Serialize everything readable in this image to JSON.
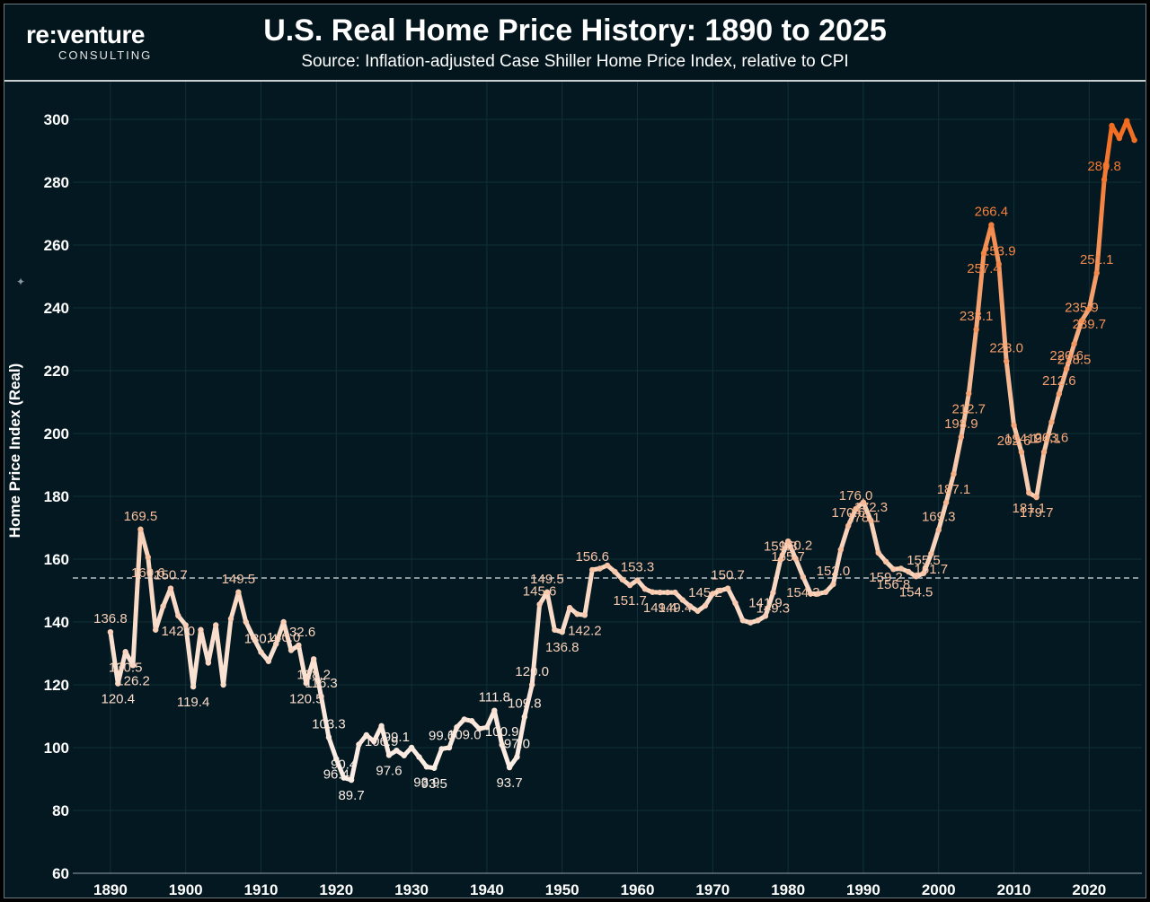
{
  "header": {
    "logo_main": "re:venture",
    "logo_sub": "CONSULTING",
    "title": "U.S. Real Home Price History: 1890 to 2025",
    "subtitle": "Source: Inflation-adjusted Case Shiller Home Price Index, relative to CPI"
  },
  "colors": {
    "background": "#031820",
    "line_start": "#fcefe8",
    "line_end": "#f26b1d",
    "average_line": "#b8c0c4"
  },
  "chart_data": {
    "type": "line",
    "title": "U.S. Real Home Price History: 1890 to 2025",
    "subtitle": "Source: Inflation-adjusted Case Shiller Home Price Index, relative to CPI",
    "xlabel": "",
    "ylabel": "Home Price Index (Real)",
    "xlim": [
      1885,
      2027
    ],
    "ylim": [
      60,
      312
    ],
    "x_ticks": [
      1890,
      1900,
      1910,
      1920,
      1930,
      1940,
      1950,
      1960,
      1970,
      1980,
      1990,
      2000,
      2010,
      2020
    ],
    "y_ticks": [
      60,
      80,
      100,
      120,
      140,
      160,
      180,
      200,
      220,
      240,
      260,
      280,
      300
    ],
    "grid": true,
    "reference_line": {
      "y": 154,
      "style": "dashed"
    },
    "series": [
      {
        "points": [
          [
            1890,
            136.8
          ],
          [
            1891,
            120.4
          ],
          [
            1892,
            130.5
          ],
          [
            1893,
            126.2
          ],
          [
            1894,
            169.5
          ],
          [
            1895,
            160.6
          ],
          [
            1896,
            137.5
          ],
          [
            1897,
            145
          ],
          [
            1898,
            150.7
          ],
          [
            1899,
            142.0
          ],
          [
            1900,
            139
          ],
          [
            1901,
            119.4
          ],
          [
            1902,
            137.5
          ],
          [
            1903,
            127
          ],
          [
            1904,
            139
          ],
          [
            1905,
            120
          ],
          [
            1906,
            141
          ],
          [
            1907,
            149.5
          ],
          [
            1908,
            140
          ],
          [
            1909,
            135
          ],
          [
            1910,
            130.4
          ],
          [
            1911,
            127.5
          ],
          [
            1912,
            133
          ],
          [
            1913,
            140.0
          ],
          [
            1914,
            131
          ],
          [
            1915,
            132.6
          ],
          [
            1916,
            120.5
          ],
          [
            1917,
            128.2
          ],
          [
            1918,
            116.3
          ],
          [
            1919,
            103.3
          ],
          [
            1920,
            96.4
          ],
          [
            1921,
            90.4
          ],
          [
            1922,
            89.7
          ],
          [
            1923,
            101
          ],
          [
            1924,
            104
          ],
          [
            1925,
            102
          ],
          [
            1926,
            106.9
          ],
          [
            1927,
            97.6
          ],
          [
            1928,
            99.1
          ],
          [
            1929,
            97.5
          ],
          [
            1930,
            100
          ],
          [
            1931,
            97
          ],
          [
            1932,
            93.9
          ],
          [
            1933,
            93.5
          ],
          [
            1934,
            99.6
          ],
          [
            1935,
            100
          ],
          [
            1936,
            106.5
          ],
          [
            1937,
            109.0
          ],
          [
            1938,
            108.5
          ],
          [
            1939,
            106
          ],
          [
            1940,
            106.5
          ],
          [
            1941,
            111.8
          ],
          [
            1942,
            100.9
          ],
          [
            1943,
            93.7
          ],
          [
            1944,
            97.0
          ],
          [
            1945,
            109.8
          ],
          [
            1946,
            120.0
          ],
          [
            1947,
            145.6
          ],
          [
            1948,
            149.5
          ],
          [
            1949,
            137.5
          ],
          [
            1950,
            136.8
          ],
          [
            1951,
            144.5
          ],
          [
            1952,
            142.5
          ],
          [
            1953,
            142.2
          ],
          [
            1954,
            156.6
          ],
          [
            1955,
            157
          ],
          [
            1956,
            158
          ],
          [
            1957,
            156
          ],
          [
            1958,
            153.5
          ],
          [
            1959,
            151.7
          ],
          [
            1960,
            153.3
          ],
          [
            1961,
            150.5
          ],
          [
            1962,
            149.5
          ],
          [
            1963,
            149.4
          ],
          [
            1964,
            149.4
          ],
          [
            1965,
            149.4
          ],
          [
            1966,
            147
          ],
          [
            1967,
            145
          ],
          [
            1968,
            143.5
          ],
          [
            1969,
            145.2
          ],
          [
            1970,
            149
          ],
          [
            1971,
            150
          ],
          [
            1972,
            150.7
          ],
          [
            1973,
            146
          ],
          [
            1974,
            140.5
          ],
          [
            1975,
            139.8
          ],
          [
            1976,
            140.5
          ],
          [
            1977,
            141.9
          ],
          [
            1978,
            149.3
          ],
          [
            1979,
            159.8
          ],
          [
            1980,
            165.7
          ],
          [
            1981,
            160.2
          ],
          [
            1982,
            154.3
          ],
          [
            1983,
            149
          ],
          [
            1984,
            149
          ],
          [
            1985,
            149.5
          ],
          [
            1986,
            152.0
          ],
          [
            1987,
            163
          ],
          [
            1988,
            170.6
          ],
          [
            1989,
            176.0
          ],
          [
            1990,
            178.1
          ],
          [
            1991,
            172.3
          ],
          [
            1992,
            162
          ],
          [
            1993,
            159.2
          ],
          [
            1994,
            156.8
          ],
          [
            1995,
            157
          ],
          [
            1996,
            156
          ],
          [
            1997,
            154.5
          ],
          [
            1998,
            155.5
          ],
          [
            1999,
            161.7
          ],
          [
            2000,
            169.3
          ],
          [
            2001,
            178
          ],
          [
            2002,
            187.1
          ],
          [
            2003,
            198.9
          ],
          [
            2004,
            212.7
          ],
          [
            2005,
            233.1
          ],
          [
            2006,
            257.4
          ],
          [
            2007,
            266.4
          ],
          [
            2008,
            253.9
          ],
          [
            2009,
            223.0
          ],
          [
            2010,
            202.6
          ],
          [
            2011,
            194.1
          ],
          [
            2012,
            181.1
          ],
          [
            2013,
            179.7
          ],
          [
            2014,
            194.1
          ],
          [
            2015,
            203.6
          ],
          [
            2016,
            212.6
          ],
          [
            2017,
            220.6
          ],
          [
            2018,
            228.5
          ],
          [
            2019,
            235.9
          ],
          [
            2020,
            239.7
          ],
          [
            2021,
            251.1
          ],
          [
            2022,
            280.8
          ],
          [
            2023,
            298
          ],
          [
            2024,
            294
          ],
          [
            2025,
            299.5
          ],
          [
            2026,
            293.4
          ]
        ]
      }
    ],
    "data_labels": [
      {
        "x": 1890,
        "y": 136.8,
        "text": "136.8"
      },
      {
        "x": 1891,
        "y": 120.4,
        "text": "120.4"
      },
      {
        "x": 1892,
        "y": 130.5,
        "text": "130.5"
      },
      {
        "x": 1893,
        "y": 126.2,
        "text": "126.2"
      },
      {
        "x": 1894,
        "y": 169.5,
        "text": "169.5"
      },
      {
        "x": 1895,
        "y": 160.6,
        "text": "160.6"
      },
      {
        "x": 1898,
        "y": 150.7,
        "text": "150.7"
      },
      {
        "x": 1899,
        "y": 142.0,
        "text": "142.0"
      },
      {
        "x": 1901,
        "y": 119.4,
        "text": "119.4"
      },
      {
        "x": 1907,
        "y": 149.5,
        "text": "149.5"
      },
      {
        "x": 1910,
        "y": 130.4,
        "text": "130.4"
      },
      {
        "x": 1913,
        "y": 140.0,
        "text": "140.0"
      },
      {
        "x": 1915,
        "y": 132.6,
        "text": "132.6"
      },
      {
        "x": 1916,
        "y": 120.5,
        "text": "120.5"
      },
      {
        "x": 1917,
        "y": 128.2,
        "text": "128.2"
      },
      {
        "x": 1918,
        "y": 116.3,
        "text": "116.3"
      },
      {
        "x": 1919,
        "y": 103.3,
        "text": "103.3"
      },
      {
        "x": 1920,
        "y": 96.4,
        "text": "96.4"
      },
      {
        "x": 1921,
        "y": 90.4,
        "text": "90.4"
      },
      {
        "x": 1922,
        "y": 89.7,
        "text": "89.7"
      },
      {
        "x": 1926,
        "y": 106.9,
        "text": "106.9"
      },
      {
        "x": 1927,
        "y": 97.6,
        "text": "97.6"
      },
      {
        "x": 1928,
        "y": 99.1,
        "text": "99.1"
      },
      {
        "x": 1932,
        "y": 93.9,
        "text": "93.9"
      },
      {
        "x": 1933,
        "y": 93.5,
        "text": "93.5"
      },
      {
        "x": 1934,
        "y": 99.6,
        "text": "99.6"
      },
      {
        "x": 1937,
        "y": 109.0,
        "text": "109.0"
      },
      {
        "x": 1941,
        "y": 111.8,
        "text": "111.8"
      },
      {
        "x": 1942,
        "y": 100.9,
        "text": "100.9"
      },
      {
        "x": 1943,
        "y": 93.7,
        "text": "93.7"
      },
      {
        "x": 1944,
        "y": 97.0,
        "text": "97.0"
      },
      {
        "x": 1945,
        "y": 109.8,
        "text": "109.8"
      },
      {
        "x": 1946,
        "y": 120.0,
        "text": "120.0"
      },
      {
        "x": 1947,
        "y": 145.6,
        "text": "145.6"
      },
      {
        "x": 1948,
        "y": 149.5,
        "text": "149.5"
      },
      {
        "x": 1950,
        "y": 136.8,
        "text": "136.8"
      },
      {
        "x": 1953,
        "y": 142.2,
        "text": "142.2"
      },
      {
        "x": 1954,
        "y": 156.6,
        "text": "156.6"
      },
      {
        "x": 1959,
        "y": 151.7,
        "text": "151.7"
      },
      {
        "x": 1960,
        "y": 153.3,
        "text": "153.3"
      },
      {
        "x": 1963,
        "y": 149.4,
        "text": "149.4"
      },
      {
        "x": 1965,
        "y": 149.4,
        "text": "149.4"
      },
      {
        "x": 1969,
        "y": 145.2,
        "text": "145.2"
      },
      {
        "x": 1972,
        "y": 150.7,
        "text": "150.7"
      },
      {
        "x": 1977,
        "y": 141.9,
        "text": "141.9"
      },
      {
        "x": 1978,
        "y": 149.3,
        "text": "149.3"
      },
      {
        "x": 1979,
        "y": 159.8,
        "text": "159.8"
      },
      {
        "x": 1980,
        "y": 165.7,
        "text": "165.7"
      },
      {
        "x": 1981,
        "y": 160.2,
        "text": "160.2"
      },
      {
        "x": 1982,
        "y": 154.3,
        "text": "154.3"
      },
      {
        "x": 1986,
        "y": 152.0,
        "text": "152.0"
      },
      {
        "x": 1988,
        "y": 170.6,
        "text": "170.6"
      },
      {
        "x": 1989,
        "y": 176.0,
        "text": "176.0"
      },
      {
        "x": 1990,
        "y": 178.1,
        "text": "178.1"
      },
      {
        "x": 1991,
        "y": 172.3,
        "text": "172.3"
      },
      {
        "x": 1993,
        "y": 159.2,
        "text": "159.2"
      },
      {
        "x": 1994,
        "y": 156.8,
        "text": "156.8"
      },
      {
        "x": 1997,
        "y": 154.5,
        "text": "154.5"
      },
      {
        "x": 1998,
        "y": 155.5,
        "text": "155.5"
      },
      {
        "x": 1999,
        "y": 161.7,
        "text": "161.7"
      },
      {
        "x": 2000,
        "y": 169.3,
        "text": "169.3"
      },
      {
        "x": 2002,
        "y": 187.1,
        "text": "187.1"
      },
      {
        "x": 2003,
        "y": 198.9,
        "text": "198.9"
      },
      {
        "x": 2004,
        "y": 212.7,
        "text": "212.7"
      },
      {
        "x": 2005,
        "y": 233.1,
        "text": "233.1"
      },
      {
        "x": 2006,
        "y": 257.4,
        "text": "257.4"
      },
      {
        "x": 2007,
        "y": 266.4,
        "text": "266.4"
      },
      {
        "x": 2008,
        "y": 253.9,
        "text": "253.9"
      },
      {
        "x": 2009,
        "y": 223.0,
        "text": "223.0"
      },
      {
        "x": 2010,
        "y": 202.6,
        "text": "202.6"
      },
      {
        "x": 2011,
        "y": 194.1,
        "text": "194.1"
      },
      {
        "x": 2012,
        "y": 181.1,
        "text": "181.1"
      },
      {
        "x": 2013,
        "y": 179.7,
        "text": "179.7"
      },
      {
        "x": 2014,
        "y": 194.1,
        "text": "194.1"
      },
      {
        "x": 2015,
        "y": 203.6,
        "text": "203.6"
      },
      {
        "x": 2016,
        "y": 212.6,
        "text": "212.6"
      },
      {
        "x": 2017,
        "y": 220.6,
        "text": "220.6"
      },
      {
        "x": 2018,
        "y": 228.5,
        "text": "228.5"
      },
      {
        "x": 2019,
        "y": 235.9,
        "text": "235.9"
      },
      {
        "x": 2020,
        "y": 239.7,
        "text": "239.7"
      },
      {
        "x": 2021,
        "y": 251.1,
        "text": "251.1"
      },
      {
        "x": 2022,
        "y": 280.8,
        "text": "280.8"
      },
      {
        "x": 2026,
        "y": 293.4,
        "text": "293.4"
      }
    ]
  }
}
